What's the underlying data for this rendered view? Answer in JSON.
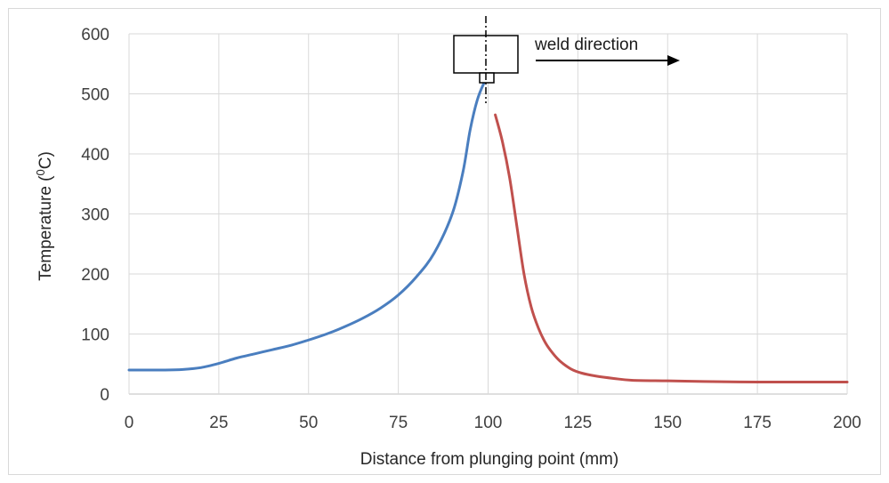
{
  "chart_data": {
    "type": "line",
    "xlabel": "Distance from plunging  point (mm)",
    "ylabel_prefix": "Temperature (",
    "ylabel_sup": "0",
    "ylabel_suffix": "C)",
    "xlim": [
      0,
      200
    ],
    "ylim": [
      0,
      600
    ],
    "x_ticks": [
      0,
      25,
      50,
      75,
      100,
      125,
      150,
      175,
      200
    ],
    "y_ticks": [
      0,
      100,
      200,
      300,
      400,
      500,
      600
    ],
    "grid": true,
    "series": [
      {
        "color": "#4a7ebf",
        "points": [
          [
            0,
            40
          ],
          [
            5,
            40
          ],
          [
            10,
            40
          ],
          [
            15,
            41
          ],
          [
            20,
            44
          ],
          [
            25,
            51
          ],
          [
            30,
            60
          ],
          [
            35,
            67
          ],
          [
            40,
            74
          ],
          [
            45,
            81
          ],
          [
            50,
            90
          ],
          [
            55,
            100
          ],
          [
            60,
            112
          ],
          [
            65,
            126
          ],
          [
            70,
            143
          ],
          [
            75,
            165
          ],
          [
            80,
            195
          ],
          [
            85,
            235
          ],
          [
            90,
            300
          ],
          [
            93,
            370
          ],
          [
            95,
            440
          ],
          [
            97,
            490
          ],
          [
            99,
            520
          ],
          [
            100,
            530
          ]
        ]
      },
      {
        "color": "#c0504d",
        "points": [
          [
            102,
            465
          ],
          [
            104,
            420
          ],
          [
            106,
            360
          ],
          [
            108,
            280
          ],
          [
            110,
            200
          ],
          [
            112,
            145
          ],
          [
            114,
            110
          ],
          [
            116,
            85
          ],
          [
            118,
            68
          ],
          [
            120,
            55
          ],
          [
            123,
            42
          ],
          [
            126,
            35
          ],
          [
            130,
            30
          ],
          [
            135,
            26
          ],
          [
            140,
            23
          ],
          [
            150,
            22
          ],
          [
            160,
            21
          ],
          [
            175,
            20
          ],
          [
            190,
            20
          ],
          [
            200,
            20
          ]
        ]
      }
    ],
    "annotation": "weld direction",
    "tool_position_x": 100
  }
}
